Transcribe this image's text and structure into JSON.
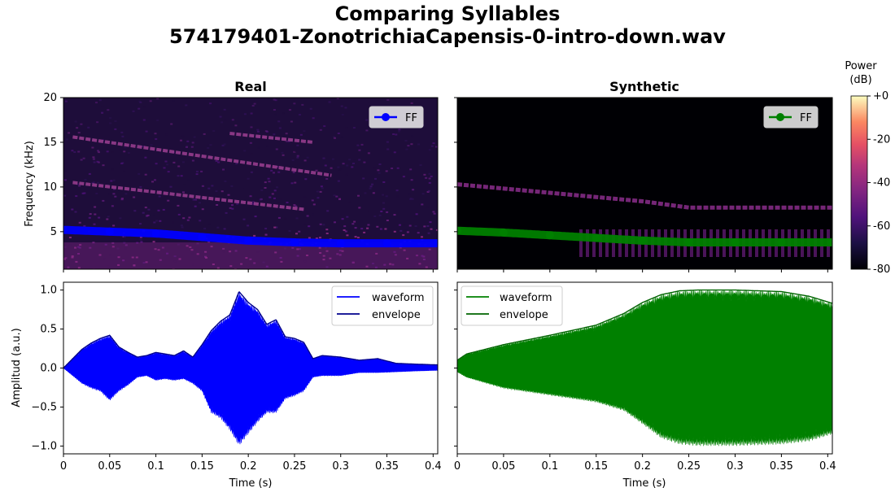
{
  "title_line1": "Comparing Syllables",
  "title_line2": "574179401-ZonotrichiaCapensis-0-intro-down.wav",
  "colorbar": {
    "label_line1": "Power",
    "label_line2": "(dB)",
    "ticks": [
      "+0",
      "-20",
      "-40",
      "-60",
      "-80"
    ],
    "tick_values": [
      0,
      -20,
      -40,
      -60,
      -80
    ],
    "range": [
      -80,
      0
    ],
    "colormap": "magma"
  },
  "colors": {
    "real": "#0000ff",
    "real_envelope": "#00008b",
    "synthetic": "#008000",
    "synthetic_envelope": "#006400"
  },
  "chart_data": [
    {
      "type": "heatmap",
      "panel": "spectrogram-real",
      "title": "Real",
      "xlabel": "",
      "ylabel": "Frequency (kHz)",
      "xlim": [
        0,
        0.405
      ],
      "ylim": [
        0.8,
        20
      ],
      "yticks": [
        5,
        10,
        15,
        20
      ],
      "ytick_labels": [
        "5",
        "10",
        "15",
        "20"
      ],
      "legend": {
        "position": "top-right",
        "entries": [
          "FF"
        ]
      },
      "harmonics_khz": [
        {
          "x": [
            0.01,
            0.26
          ],
          "y": [
            10.5,
            7.5
          ]
        },
        {
          "x": [
            0.01,
            0.29
          ],
          "y": [
            15.6,
            11.3
          ]
        },
        {
          "x": [
            0.18,
            0.27
          ],
          "y": [
            16.0,
            15.0
          ]
        }
      ],
      "series": [
        {
          "name": "FF",
          "x": [
            0,
            0.05,
            0.1,
            0.15,
            0.2,
            0.25,
            0.3,
            0.35,
            0.405
          ],
          "y": [
            5.2,
            5.0,
            4.8,
            4.4,
            4.0,
            3.8,
            3.7,
            3.7,
            3.7
          ]
        }
      ]
    },
    {
      "type": "heatmap",
      "panel": "spectrogram-synthetic",
      "title": "Synthetic",
      "xlabel": "",
      "ylabel": "",
      "xlim": [
        0,
        0.405
      ],
      "ylim": [
        0.8,
        20
      ],
      "legend": {
        "position": "top-right",
        "entries": [
          "FF"
        ]
      },
      "harmonics_khz": [
        {
          "x": [
            0,
            0.2,
            0.25,
            0.405
          ],
          "y": [
            10.3,
            8.4,
            7.7,
            7.7
          ]
        }
      ],
      "series": [
        {
          "name": "FF",
          "x": [
            0,
            0.05,
            0.1,
            0.15,
            0.2,
            0.25,
            0.3,
            0.35,
            0.405
          ],
          "y": [
            5.1,
            4.9,
            4.6,
            4.3,
            4.0,
            3.8,
            3.8,
            3.8,
            3.8
          ]
        }
      ]
    },
    {
      "type": "line",
      "panel": "waveform-real",
      "title": "",
      "xlabel": "Time (s)",
      "ylabel": "Amplitud (a.u.)",
      "xlim": [
        0,
        0.405
      ],
      "ylim": [
        -1.1,
        1.1
      ],
      "xticks": [
        0,
        0.05,
        0.1,
        0.15,
        0.2,
        0.25,
        0.3,
        0.35,
        0.4
      ],
      "xtick_labels": [
        "0",
        "0.05",
        "0.1",
        "0.15",
        "0.2",
        "0.25",
        "0.3",
        "0.35",
        "0.4"
      ],
      "yticks": [
        -1,
        -0.5,
        0,
        0.5,
        1
      ],
      "ytick_labels": [
        "−1.0",
        "−0.5",
        "0.0",
        "0.5",
        "1.0"
      ],
      "legend": {
        "position": "top-right",
        "entries": [
          "waveform",
          "envelope"
        ]
      },
      "series": [
        {
          "name": "envelope",
          "x": [
            0,
            0.01,
            0.02,
            0.03,
            0.04,
            0.05,
            0.06,
            0.07,
            0.08,
            0.09,
            0.1,
            0.11,
            0.12,
            0.13,
            0.14,
            0.15,
            0.16,
            0.17,
            0.18,
            0.19,
            0.2,
            0.21,
            0.22,
            0.23,
            0.24,
            0.25,
            0.26,
            0.27,
            0.28,
            0.3,
            0.32,
            0.34,
            0.36,
            0.38,
            0.405
          ],
          "y": [
            0.0,
            0.12,
            0.24,
            0.32,
            0.38,
            0.42,
            0.27,
            0.2,
            0.14,
            0.16,
            0.2,
            0.18,
            0.16,
            0.22,
            0.14,
            0.3,
            0.48,
            0.6,
            0.68,
            0.98,
            0.84,
            0.75,
            0.56,
            0.62,
            0.4,
            0.38,
            0.33,
            0.12,
            0.16,
            0.14,
            0.1,
            0.12,
            0.06,
            0.05,
            0.04
          ]
        },
        {
          "name": "waveform",
          "note_lower_envelope": [
            0.0,
            -0.1,
            -0.2,
            -0.26,
            -0.3,
            -0.42,
            -0.3,
            -0.22,
            -0.12,
            -0.1,
            -0.16,
            -0.14,
            -0.16,
            -0.14,
            -0.2,
            -0.3,
            -0.58,
            -0.65,
            -0.8,
            -1.0,
            -0.85,
            -0.7,
            -0.58,
            -0.58,
            -0.4,
            -0.36,
            -0.3,
            -0.12,
            -0.1,
            -0.1,
            -0.06,
            -0.06,
            -0.05,
            -0.04,
            -0.03
          ]
        }
      ]
    },
    {
      "type": "line",
      "panel": "waveform-synthetic",
      "title": "",
      "xlabel": "Time (s)",
      "ylabel": "",
      "xlim": [
        0,
        0.405
      ],
      "ylim": [
        -1.1,
        1.1
      ],
      "xticks": [
        0,
        0.05,
        0.1,
        0.15,
        0.2,
        0.25,
        0.3,
        0.35,
        0.4
      ],
      "xtick_labels": [
        "0",
        "0.05",
        "0.1",
        "0.15",
        "0.2",
        "0.25",
        "0.3",
        "0.35",
        "0.4"
      ],
      "legend": {
        "position": "top-left",
        "entries": [
          "waveform",
          "envelope"
        ]
      },
      "series": [
        {
          "name": "envelope",
          "x": [
            0,
            0.01,
            0.05,
            0.1,
            0.15,
            0.18,
            0.2,
            0.22,
            0.24,
            0.26,
            0.3,
            0.35,
            0.38,
            0.405
          ],
          "y": [
            0.1,
            0.18,
            0.3,
            0.42,
            0.55,
            0.7,
            0.84,
            0.94,
            0.99,
            1.0,
            1.0,
            0.98,
            0.92,
            0.83
          ]
        },
        {
          "name": "waveform",
          "note_lower_envelope": [
            -0.05,
            -0.12,
            -0.26,
            -0.35,
            -0.44,
            -0.55,
            -0.72,
            -0.9,
            -0.98,
            -1.0,
            -1.0,
            -0.98,
            -0.94,
            -0.85
          ]
        }
      ]
    }
  ]
}
